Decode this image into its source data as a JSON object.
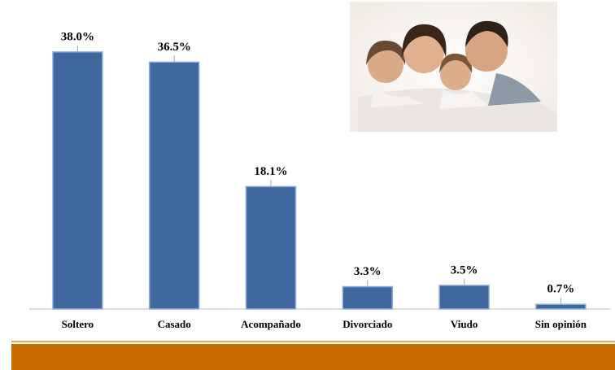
{
  "chart_data": {
    "type": "bar",
    "categories": [
      "Soltero",
      "Casado",
      "Acompañado",
      "Divorciado",
      "Viudo",
      "Sin opinión"
    ],
    "values": [
      38.0,
      36.5,
      18.1,
      3.3,
      3.5,
      0.7
    ],
    "value_labels": [
      "38.0%",
      "36.5%",
      "18.1%",
      "3.3%",
      "3.5%",
      "0.7%"
    ],
    "color": "#41679f"
  }
}
